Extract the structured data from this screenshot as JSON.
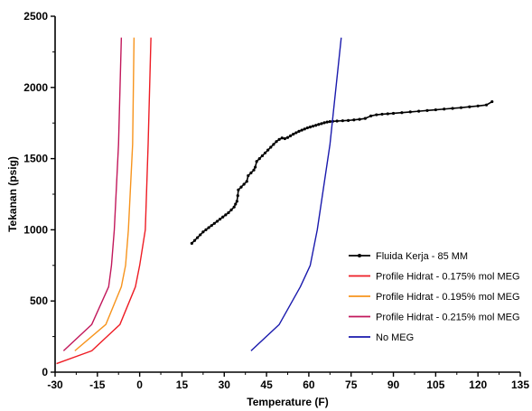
{
  "chart_data": {
    "type": "line",
    "title": "",
    "xlabel": "Temperature (F)",
    "ylabel": "Tekanan (psig)",
    "xlim": [
      -30,
      135
    ],
    "ylim": [
      0,
      2500
    ],
    "x_ticks": [
      -30,
      -15,
      0,
      15,
      30,
      45,
      60,
      75,
      90,
      105,
      120,
      135
    ],
    "y_ticks": [
      0,
      500,
      1000,
      1500,
      2000,
      2500
    ],
    "grid": false,
    "legend_position": "bottom-right",
    "series": [
      {
        "name": "Fluida Kerja - 85 MM",
        "color": "#000000",
        "marker": "dot",
        "points": [
          [
            18.5,
            905
          ],
          [
            19.5,
            925
          ],
          [
            20.5,
            945
          ],
          [
            21.5,
            965
          ],
          [
            22.5,
            985
          ],
          [
            23.5,
            1000
          ],
          [
            24.5,
            1015
          ],
          [
            25.5,
            1030
          ],
          [
            26.5,
            1045
          ],
          [
            27.5,
            1060
          ],
          [
            28.5,
            1075
          ],
          [
            29.5,
            1090
          ],
          [
            30.5,
            1105
          ],
          [
            31.5,
            1120
          ],
          [
            32.5,
            1140
          ],
          [
            33.5,
            1160
          ],
          [
            34.0,
            1180
          ],
          [
            34.5,
            1200
          ],
          [
            34.8,
            1240
          ],
          [
            35.0,
            1280
          ],
          [
            36.0,
            1300
          ],
          [
            37.0,
            1320
          ],
          [
            38.0,
            1340
          ],
          [
            38.5,
            1380
          ],
          [
            39.5,
            1400
          ],
          [
            40.5,
            1420
          ],
          [
            41.0,
            1440
          ],
          [
            41.5,
            1480
          ],
          [
            42.5,
            1500
          ],
          [
            43.5,
            1520
          ],
          [
            44.5,
            1540
          ],
          [
            45.5,
            1560
          ],
          [
            46.5,
            1580
          ],
          [
            47.5,
            1600
          ],
          [
            48.5,
            1620
          ],
          [
            49.5,
            1635
          ],
          [
            50.5,
            1645
          ],
          [
            51.5,
            1640
          ],
          [
            52.5,
            1648
          ],
          [
            53.5,
            1660
          ],
          [
            54.5,
            1672
          ],
          [
            55.5,
            1682
          ],
          [
            56.5,
            1692
          ],
          [
            57.5,
            1700
          ],
          [
            58.5,
            1708
          ],
          [
            59.5,
            1716
          ],
          [
            60.5,
            1722
          ],
          [
            61.5,
            1728
          ],
          [
            62.5,
            1734
          ],
          [
            63.5,
            1740
          ],
          [
            64.5,
            1746
          ],
          [
            65.5,
            1752
          ],
          [
            66.5,
            1757
          ],
          [
            67.5,
            1760
          ],
          [
            68.5,
            1762
          ],
          [
            70.0,
            1764
          ],
          [
            72.0,
            1766
          ],
          [
            74.0,
            1768
          ],
          [
            76.0,
            1772
          ],
          [
            78.0,
            1776
          ],
          [
            80.0,
            1782
          ],
          [
            82.0,
            1800
          ],
          [
            84.0,
            1808
          ],
          [
            86.0,
            1812
          ],
          [
            88.0,
            1815
          ],
          [
            90.0,
            1818
          ],
          [
            93.0,
            1823
          ],
          [
            96.0,
            1828
          ],
          [
            99.0,
            1833
          ],
          [
            102.0,
            1838
          ],
          [
            105.0,
            1843
          ],
          [
            108.0,
            1848
          ],
          [
            111.0,
            1853
          ],
          [
            114.0,
            1858
          ],
          [
            117.0,
            1864
          ],
          [
            120.0,
            1870
          ],
          [
            123.0,
            1877
          ],
          [
            125.0,
            1900
          ]
        ]
      },
      {
        "name": "Profile Hidrat - 0.175% mol MEG",
        "color": "#ee1c24",
        "marker": "none",
        "points": [
          [
            -29.5,
            60
          ],
          [
            -17,
            150
          ],
          [
            -7,
            335
          ],
          [
            -1.5,
            600
          ],
          [
            0,
            750
          ],
          [
            2,
            1000
          ],
          [
            3,
            1600
          ],
          [
            4,
            2350
          ]
        ]
      },
      {
        "name": "Profile Hidrat - 0.195% mol MEG",
        "color": "#f7941d",
        "marker": "none",
        "points": [
          [
            -23,
            150
          ],
          [
            -12,
            335
          ],
          [
            -6.5,
            600
          ],
          [
            -5,
            750
          ],
          [
            -4,
            1000
          ],
          [
            -2.5,
            1600
          ],
          [
            -2,
            2350
          ]
        ]
      },
      {
        "name": "Profile Hidrat - 0.215% mol MEG",
        "color": "#c2185b",
        "marker": "none",
        "points": [
          [
            -27,
            150
          ],
          [
            -17,
            335
          ],
          [
            -11,
            600
          ],
          [
            -10,
            750
          ],
          [
            -9,
            1000
          ],
          [
            -7.5,
            1600
          ],
          [
            -6.5,
            2350
          ]
        ]
      },
      {
        "name": "No MEG",
        "color": "#1a1aad",
        "marker": "none",
        "points": [
          [
            39.5,
            150
          ],
          [
            49.5,
            335
          ],
          [
            57,
            600
          ],
          [
            60.5,
            750
          ],
          [
            63,
            1000
          ],
          [
            67.5,
            1600
          ],
          [
            71.5,
            2350
          ]
        ]
      }
    ]
  }
}
